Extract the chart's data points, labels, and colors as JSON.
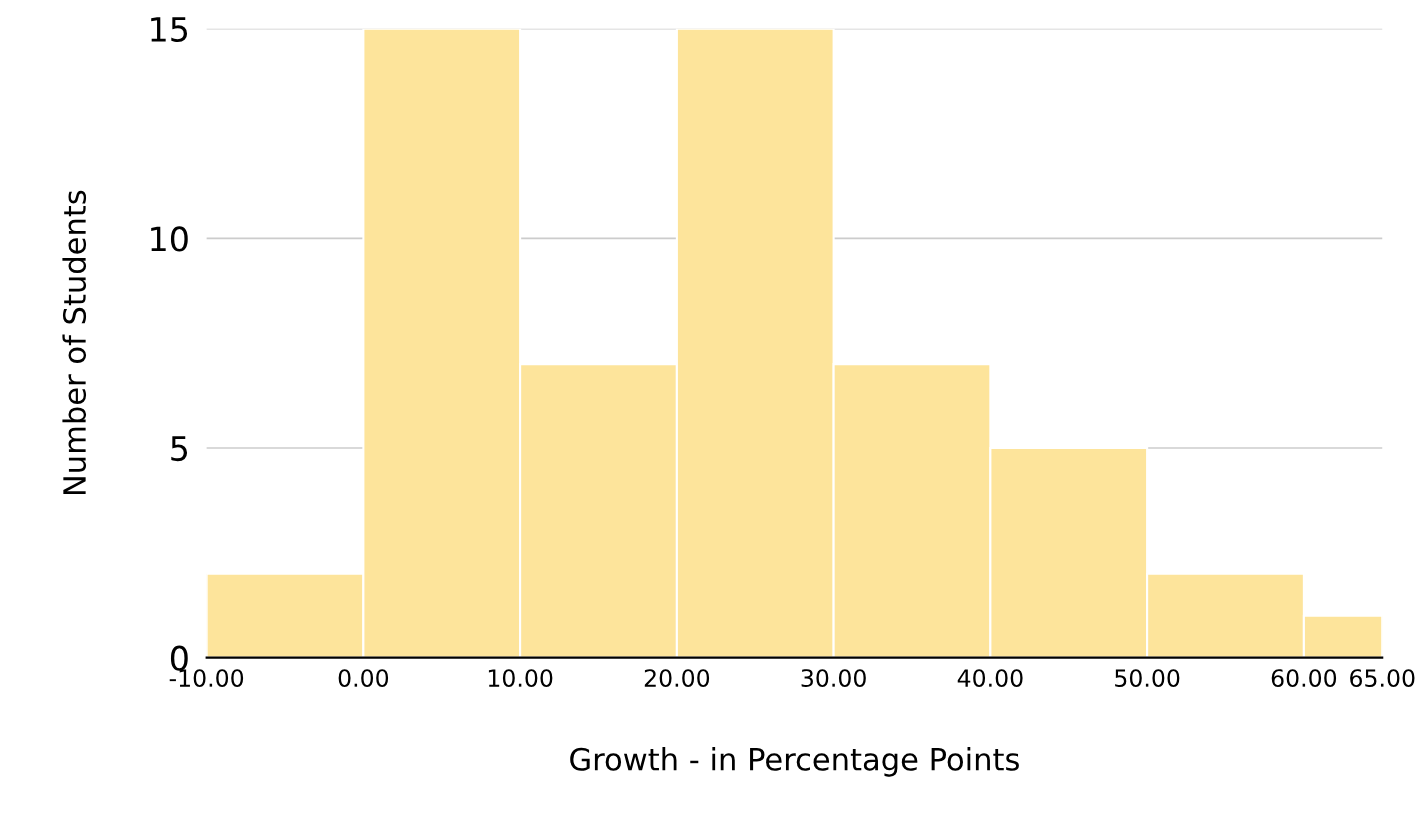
{
  "chart_data": {
    "type": "histogram",
    "xlabel": "Growth - in Percentage Points",
    "ylabel": "Number of Students",
    "bins": [
      -10,
      0,
      10,
      20,
      30,
      40,
      50,
      60,
      65
    ],
    "values": [
      2,
      15,
      7,
      15,
      7,
      5,
      2,
      1
    ],
    "color": "#fde49b",
    "xlim": [
      -10,
      65
    ],
    "xticks": [
      {
        "value": -10,
        "label": "-10.00"
      },
      {
        "value": 0,
        "label": "0.00"
      },
      {
        "value": 10,
        "label": "10.00"
      },
      {
        "value": 20,
        "label": "20.00"
      },
      {
        "value": 30,
        "label": "30.00"
      },
      {
        "value": 40,
        "label": "40.00"
      },
      {
        "value": 50,
        "label": "50.00"
      },
      {
        "value": 60,
        "label": "60.00"
      },
      {
        "value": 65,
        "label": "65.00"
      }
    ],
    "ylim": [
      0,
      15
    ],
    "yticks": [
      0,
      5,
      10,
      15
    ],
    "grid": "y",
    "legend": false
  }
}
